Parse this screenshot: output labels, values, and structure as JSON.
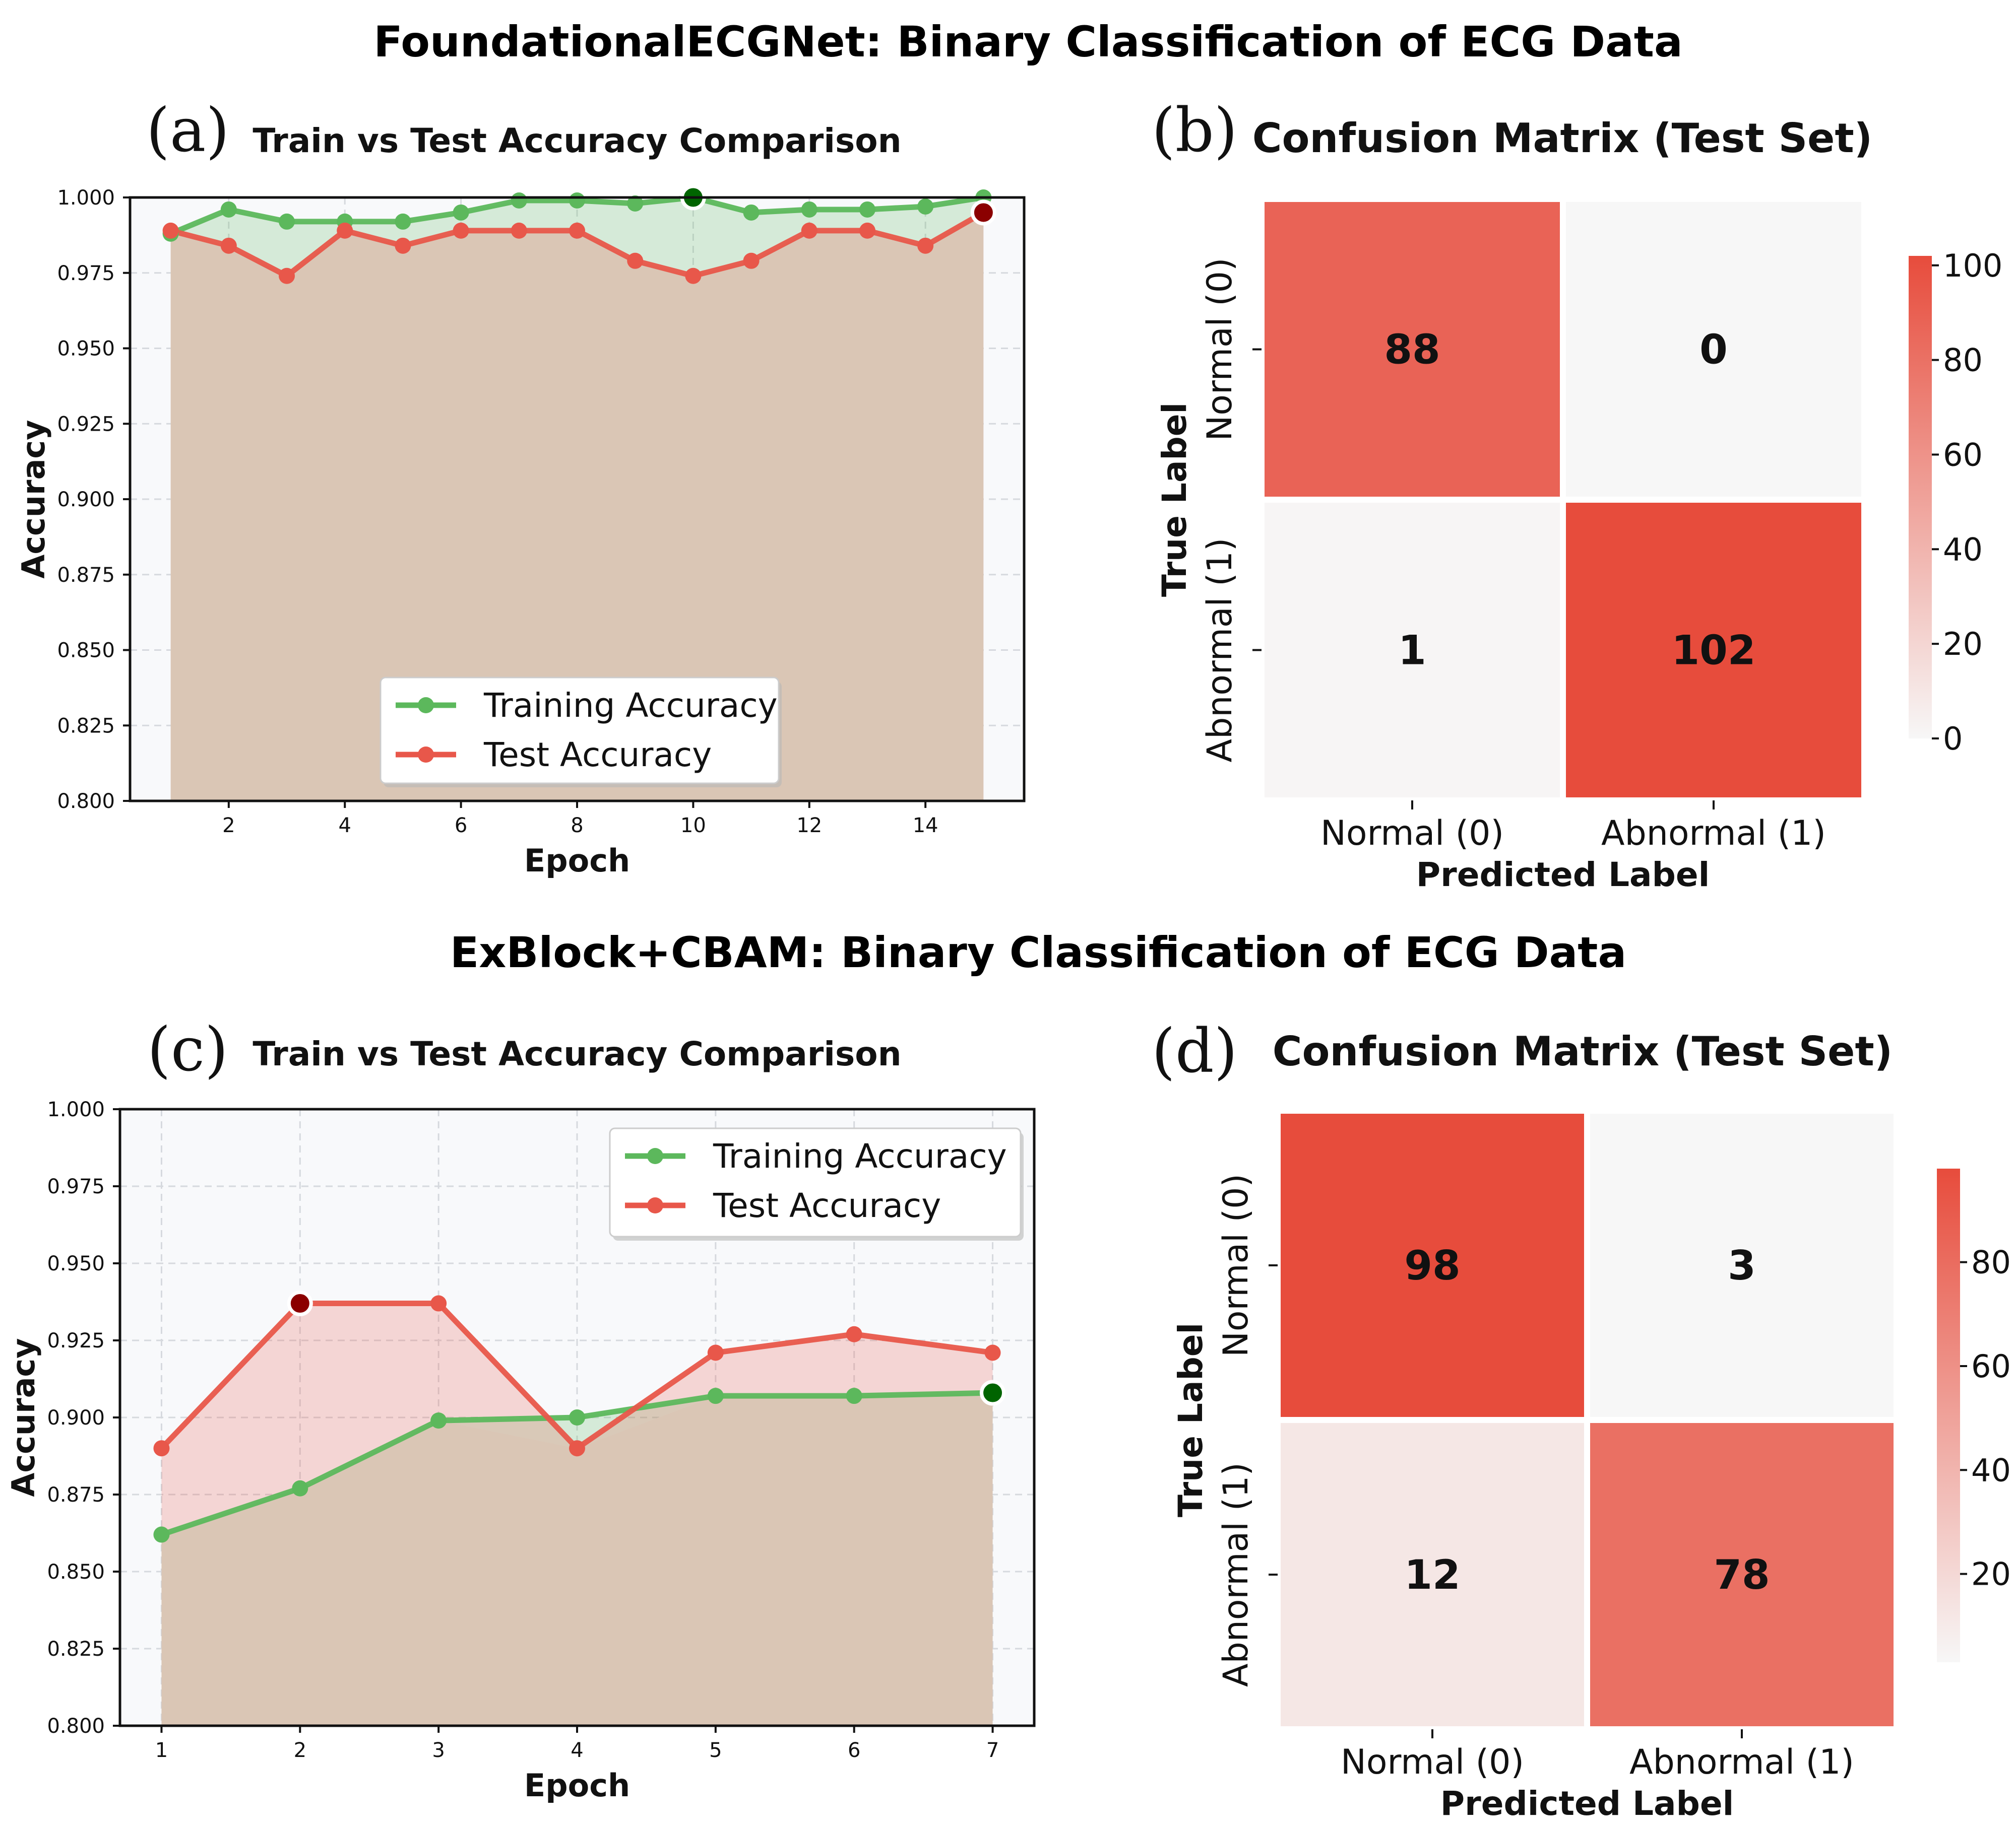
{
  "colors": {
    "train": "#5cb85c",
    "test": "#e8574a",
    "train_best": "#006400",
    "test_best": "#8b0000",
    "cm_high": "#e74c3c",
    "cm_low": "#f7f7f7",
    "plot_bg": "#f8f9fb",
    "overlap": "#dac6b5"
  },
  "sections": [
    {
      "title": "FoundationalECGNet: Binary Classification of ECG Data"
    },
    {
      "title": "ExBlock+CBAM: Binary Classification of ECG Data"
    }
  ],
  "chart_data": [
    {
      "id": "a",
      "panel_label": "(a)",
      "type": "line",
      "title": "Train vs Test Accuracy Comparison",
      "xlabel": "Epoch",
      "ylabel": "Accuracy",
      "xlim": [
        0.3,
        15.7
      ],
      "ylim": [
        0.8,
        1.0
      ],
      "xticks": [
        2,
        4,
        6,
        8,
        10,
        12,
        14
      ],
      "yticks": [
        "0.800",
        "0.825",
        "0.850",
        "0.875",
        "0.900",
        "0.925",
        "0.950",
        "0.975",
        "1.000"
      ],
      "grid": true,
      "legend_position": "lower-center",
      "x": [
        1,
        2,
        3,
        4,
        5,
        6,
        7,
        8,
        9,
        10,
        11,
        12,
        13,
        14,
        15
      ],
      "series": [
        {
          "name": "Training Accuracy",
          "key": "train",
          "values": [
            0.988,
            0.996,
            0.992,
            0.992,
            0.992,
            0.995,
            0.999,
            0.999,
            0.998,
            1.0,
            0.995,
            0.996,
            0.996,
            0.997,
            1.0
          ],
          "best_index": 9
        },
        {
          "name": "Test Accuracy",
          "key": "test",
          "values": [
            0.989,
            0.984,
            0.974,
            0.989,
            0.984,
            0.989,
            0.989,
            0.989,
            0.979,
            0.974,
            0.979,
            0.989,
            0.989,
            0.984,
            0.995
          ],
          "best_index": 14
        }
      ]
    },
    {
      "id": "b",
      "panel_label": "(b)",
      "type": "heatmap",
      "title": "Confusion Matrix (Test Set)",
      "xlabel": "Predicted Label",
      "ylabel": "True Label",
      "x_categories": [
        "Normal (0)",
        "Abnormal (1)"
      ],
      "y_categories": [
        "Normal (0)",
        "Abnormal (1)"
      ],
      "values": [
        [
          88,
          0
        ],
        [
          1,
          102
        ]
      ],
      "labels": [
        [
          "88",
          "0"
        ],
        [
          "1",
          "102"
        ]
      ],
      "colorbar_range": [
        0,
        102
      ],
      "colorbar_ticks": [
        "0",
        "20",
        "40",
        "60",
        "80",
        "100"
      ]
    },
    {
      "id": "c",
      "panel_label": "(c)",
      "type": "line",
      "title": "Train vs Test Accuracy Comparison",
      "xlabel": "Epoch",
      "ylabel": "Accuracy",
      "xlim": [
        0.7,
        7.3
      ],
      "ylim": [
        0.8,
        1.0
      ],
      "xticks": [
        1,
        2,
        3,
        4,
        5,
        6,
        7
      ],
      "yticks": [
        "0.800",
        "0.825",
        "0.850",
        "0.875",
        "0.900",
        "0.925",
        "0.950",
        "0.975",
        "1.000"
      ],
      "grid": true,
      "legend_position": "upper-right",
      "x": [
        1,
        2,
        3,
        4,
        5,
        6,
        7
      ],
      "series": [
        {
          "name": "Training Accuracy",
          "key": "train",
          "values": [
            0.862,
            0.877,
            0.899,
            0.9,
            0.907,
            0.907,
            0.908
          ],
          "best_index": 6
        },
        {
          "name": "Test Accuracy",
          "key": "test",
          "values": [
            0.89,
            0.937,
            0.937,
            0.89,
            0.921,
            0.927,
            0.921
          ],
          "best_index": 1
        }
      ]
    },
    {
      "id": "d",
      "panel_label": "(d)",
      "type": "heatmap",
      "title": "Confusion Matrix (Test Set)",
      "xlabel": "Predicted Label",
      "ylabel": "True Label",
      "x_categories": [
        "Normal (0)",
        "Abnormal (1)"
      ],
      "y_categories": [
        "Normal (0)",
        "Abnormal (1)"
      ],
      "values": [
        [
          98,
          3
        ],
        [
          12,
          78
        ]
      ],
      "labels": [
        [
          "98",
          "3"
        ],
        [
          "12",
          "78"
        ]
      ],
      "colorbar_range": [
        3,
        98
      ],
      "colorbar_ticks": [
        "20",
        "40",
        "60",
        "80"
      ]
    }
  ]
}
